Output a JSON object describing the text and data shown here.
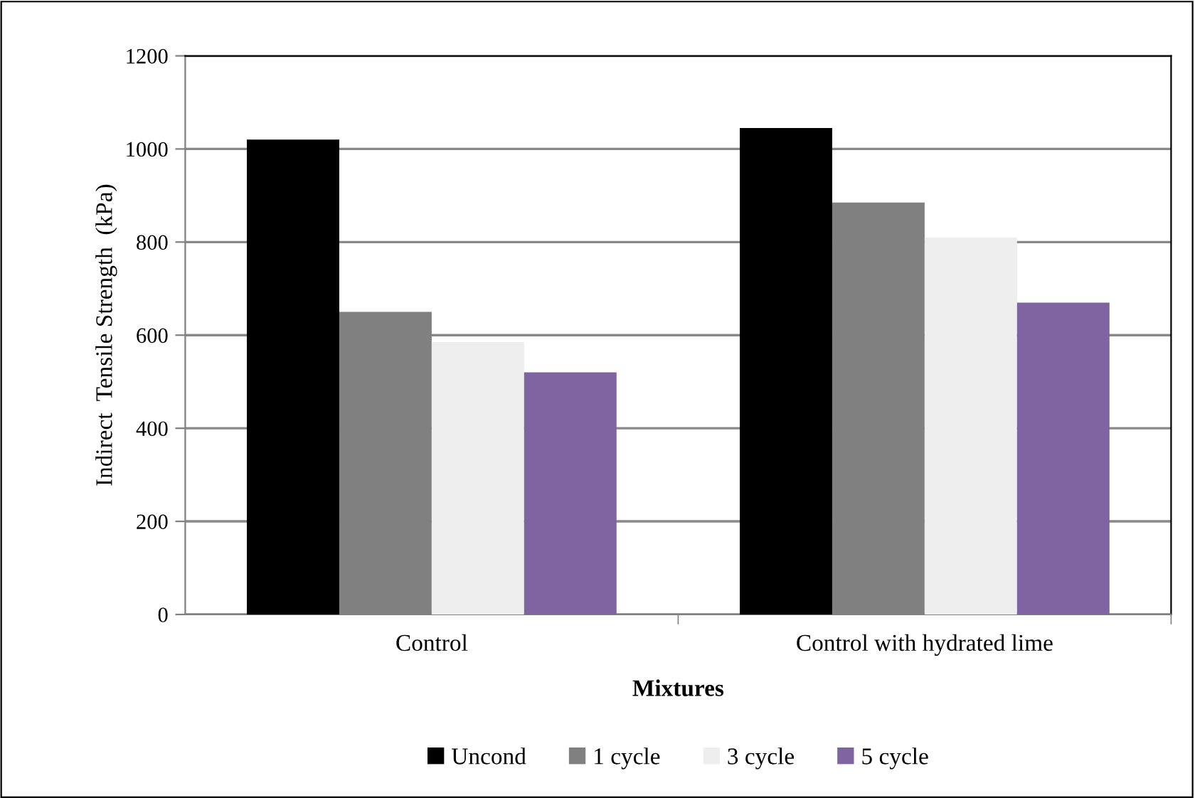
{
  "chart_data": {
    "type": "bar",
    "xlabel": "Mixtures",
    "ylabel": "Indirect  Tensile Strength  (kPa)",
    "categories": [
      "Control",
      "Control with hydrated lime"
    ],
    "series": [
      {
        "name": "Uncond",
        "color": "#000000",
        "values": [
          1020,
          1045
        ]
      },
      {
        "name": "1 cycle",
        "color": "#808080",
        "values": [
          650,
          885
        ]
      },
      {
        "name": "3 cycle",
        "color": "#eeeeee",
        "values": [
          585,
          810
        ]
      },
      {
        "name": "5 cycle",
        "color": "#8064a2",
        "values": [
          520,
          670
        ]
      }
    ],
    "ylim": [
      0,
      1200
    ],
    "yticks": [
      0,
      200,
      400,
      600,
      800,
      1000,
      1200
    ],
    "grid": "y",
    "legend": "bottom"
  }
}
